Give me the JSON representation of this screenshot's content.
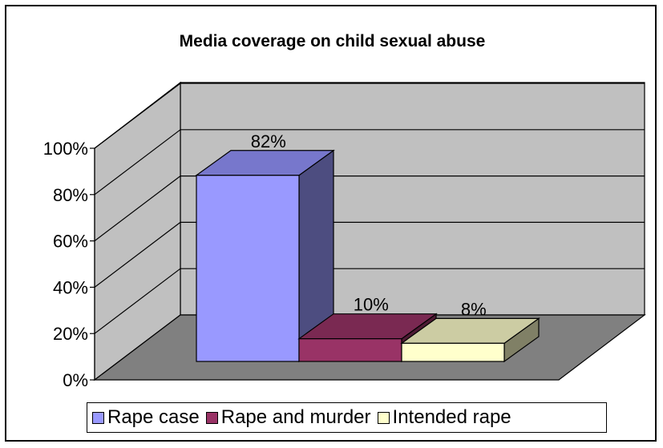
{
  "chart_data": {
    "type": "bar",
    "title": "Media coverage on child sexual abuse",
    "categories": [
      "Rape case",
      "Rape and murder",
      "Intended rape"
    ],
    "values": [
      82,
      10,
      8
    ],
    "data_labels": [
      "82%",
      "10%",
      "8%"
    ],
    "y_ticks": [
      "0%",
      "20%",
      "40%",
      "60%",
      "80%",
      "100%"
    ],
    "ylim": [
      0,
      100
    ],
    "grid": true,
    "legend_position": "bottom",
    "series": [
      {
        "name": "Rape case",
        "color": "#9999ff"
      },
      {
        "name": "Rape and murder",
        "color": "#993366"
      },
      {
        "name": "Intended rape",
        "color": "#ffffcc"
      }
    ]
  }
}
